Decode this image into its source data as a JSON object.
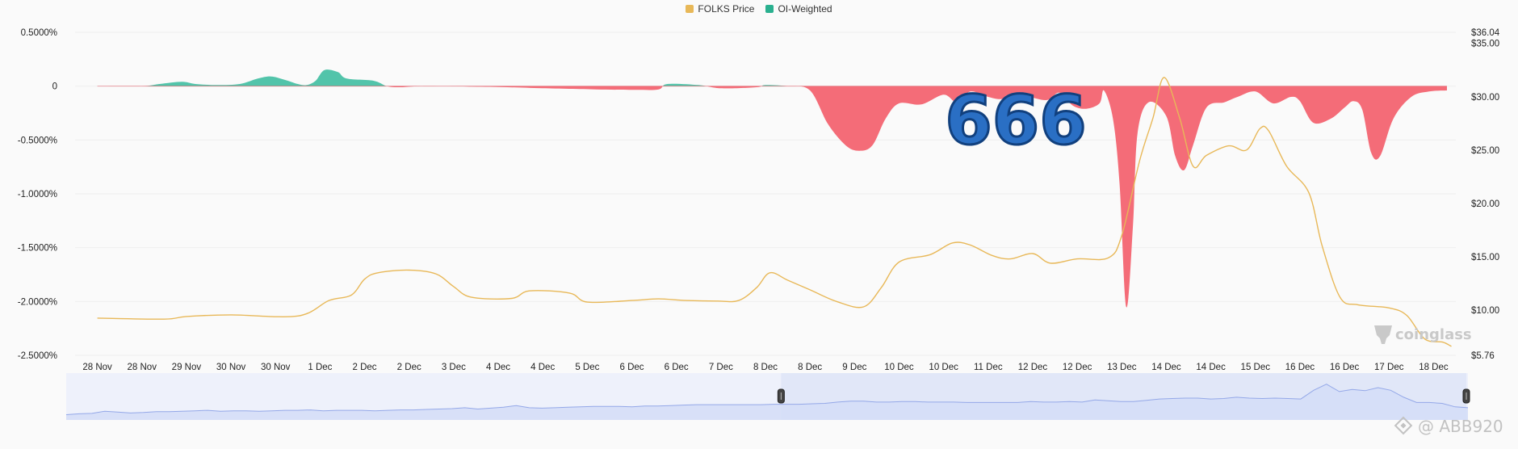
{
  "legend": {
    "price_label": "FOLKS Price",
    "oi_label": "OI-Weighted"
  },
  "colors": {
    "price": "#e8b858",
    "positive": "#52c4aa",
    "negative": "#f46c78",
    "navigator_fill": "#d5def7",
    "navigator_line": "#94a8e8",
    "grid": "#efefef"
  },
  "overlay": {
    "text": "666"
  },
  "watermark": {
    "brand": "coinglass",
    "credit": "@ ABB920"
  },
  "chart_data": {
    "type": "area",
    "x_labels": [
      "28 Nov",
      "28 Nov",
      "29 Nov",
      "30 Nov",
      "30 Nov",
      "1 Dec",
      "2 Dec",
      "2 Dec",
      "3 Dec",
      "4 Dec",
      "4 Dec",
      "5 Dec",
      "6 Dec",
      "6 Dec",
      "7 Dec",
      "8 Dec",
      "8 Dec",
      "9 Dec",
      "10 Dec",
      "10 Dec",
      "11 Dec",
      "12 Dec",
      "12 Dec",
      "13 Dec",
      "14 Dec",
      "14 Dec",
      "15 Dec",
      "16 Dec",
      "16 Dec",
      "17 Dec",
      "18 Dec"
    ],
    "y_left": {
      "ticks": [
        "0.5000%",
        "0",
        "-0.5000%",
        "-1.0000%",
        "-1.5000%",
        "-2.0000%",
        "-2.5000%"
      ],
      "range": [
        -2.5,
        0.5
      ]
    },
    "y_right": {
      "ticks": [
        "$36.04",
        "$35.00",
        "$30.00",
        "$25.00",
        "$20.00",
        "$15.00",
        "$10.00",
        "$5.76"
      ],
      "range": [
        5.76,
        36.04
      ]
    },
    "series": [
      {
        "name": "OI-Weighted",
        "unit": "%",
        "points": [
          [
            0,
            0
          ],
          [
            1,
            0
          ],
          [
            1.4,
            0.02
          ],
          [
            1.9,
            0.04
          ],
          [
            2.2,
            0.02
          ],
          [
            2.7,
            0.01
          ],
          [
            3.2,
            0.02
          ],
          [
            3.6,
            0.07
          ],
          [
            3.9,
            0.09
          ],
          [
            4.2,
            0.06
          ],
          [
            4.5,
            0.02
          ],
          [
            4.7,
            0.01
          ],
          [
            4.9,
            0.05
          ],
          [
            5.1,
            0.15
          ],
          [
            5.4,
            0.13
          ],
          [
            5.6,
            0.07
          ],
          [
            6.2,
            0.05
          ],
          [
            6.5,
            0
          ],
          [
            6.8,
            -0.01
          ],
          [
            7.3,
            0
          ],
          [
            8.4,
            -0.005
          ],
          [
            9.2,
            -0.01
          ],
          [
            10,
            -0.02
          ],
          [
            11.2,
            -0.03
          ],
          [
            12.1,
            -0.035
          ],
          [
            12.6,
            -0.03
          ],
          [
            12.8,
            0.02
          ],
          [
            13.5,
            0.01
          ],
          [
            14,
            -0.02
          ],
          [
            14.8,
            -0.01
          ],
          [
            15,
            0.01
          ],
          [
            15.5,
            0
          ],
          [
            16,
            -0.04
          ],
          [
            16.4,
            -0.35
          ],
          [
            16.8,
            -0.55
          ],
          [
            17.1,
            -0.6
          ],
          [
            17.4,
            -0.55
          ],
          [
            17.7,
            -0.3
          ],
          [
            18,
            -0.16
          ],
          [
            18.5,
            -0.17
          ],
          [
            19,
            -0.08
          ],
          [
            19.3,
            -0.15
          ],
          [
            19.6,
            -0.05
          ],
          [
            20,
            -0.1
          ],
          [
            20.3,
            -0.12
          ],
          [
            20.7,
            -0.08
          ],
          [
            21.3,
            -0.13
          ],
          [
            21.6,
            -0.06
          ],
          [
            21.9,
            -0.18
          ],
          [
            22.2,
            -0.21
          ],
          [
            22.5,
            -0.16
          ],
          [
            22.6,
            -0.04
          ],
          [
            22.8,
            -0.3
          ],
          [
            22.95,
            -0.9
          ],
          [
            23.1,
            -2.05
          ],
          [
            23.25,
            -1.3
          ],
          [
            23.35,
            -0.45
          ],
          [
            23.6,
            -0.15
          ],
          [
            24,
            -0.28
          ],
          [
            24.2,
            -0.65
          ],
          [
            24.4,
            -0.78
          ],
          [
            24.6,
            -0.55
          ],
          [
            24.9,
            -0.2
          ],
          [
            25.3,
            -0.15
          ],
          [
            25.6,
            -0.1
          ],
          [
            26,
            -0.05
          ],
          [
            26.4,
            -0.16
          ],
          [
            26.8,
            -0.1
          ],
          [
            27,
            -0.14
          ],
          [
            27.3,
            -0.34
          ],
          [
            27.7,
            -0.3
          ],
          [
            28,
            -0.2
          ],
          [
            28.2,
            -0.14
          ],
          [
            28.4,
            -0.22
          ],
          [
            28.6,
            -0.62
          ],
          [
            28.8,
            -0.65
          ],
          [
            29.1,
            -0.3
          ],
          [
            29.5,
            -0.1
          ],
          [
            29.9,
            -0.05
          ],
          [
            30.3,
            -0.04
          ]
        ]
      },
      {
        "name": "FOLKS Price",
        "unit": "$",
        "points": [
          [
            0,
            9.25
          ],
          [
            1.5,
            9.15
          ],
          [
            2,
            9.4
          ],
          [
            3,
            9.55
          ],
          [
            4.5,
            9.45
          ],
          [
            5.2,
            10.9
          ],
          [
            5.7,
            11.4
          ],
          [
            6,
            12.9
          ],
          [
            6.3,
            13.5
          ],
          [
            7,
            13.75
          ],
          [
            7.6,
            13.4
          ],
          [
            8,
            12.2
          ],
          [
            8.4,
            11.2
          ],
          [
            9.3,
            11.1
          ],
          [
            9.7,
            11.8
          ],
          [
            10.6,
            11.6
          ],
          [
            11,
            10.75
          ],
          [
            12,
            10.9
          ],
          [
            12.6,
            11.05
          ],
          [
            13.2,
            10.9
          ],
          [
            13.9,
            10.85
          ],
          [
            14.4,
            10.9
          ],
          [
            14.8,
            12.1
          ],
          [
            15.1,
            13.5
          ],
          [
            15.5,
            12.8
          ],
          [
            16,
            11.9
          ],
          [
            16.6,
            10.8
          ],
          [
            17.2,
            10.3
          ],
          [
            17.6,
            12.1
          ],
          [
            18,
            14.5
          ],
          [
            18.7,
            15.2
          ],
          [
            19.2,
            16.3
          ],
          [
            19.6,
            16.1
          ],
          [
            20.1,
            15.1
          ],
          [
            20.5,
            14.8
          ],
          [
            21,
            15.3
          ],
          [
            21.4,
            14.4
          ],
          [
            22,
            14.8
          ],
          [
            22.7,
            14.9
          ],
          [
            23,
            17
          ],
          [
            23.4,
            24
          ],
          [
            23.7,
            28
          ],
          [
            23.95,
            31.8
          ],
          [
            24.3,
            28
          ],
          [
            24.6,
            23.5
          ],
          [
            24.9,
            24.5
          ],
          [
            25.4,
            25.4
          ],
          [
            25.8,
            25
          ],
          [
            26.1,
            27
          ],
          [
            26.3,
            26.8
          ],
          [
            26.7,
            23.5
          ],
          [
            27.2,
            21
          ],
          [
            27.5,
            16
          ],
          [
            27.9,
            11.2
          ],
          [
            28.3,
            10.5
          ],
          [
            29,
            10.2
          ],
          [
            29.4,
            9.5
          ],
          [
            29.8,
            7.3
          ],
          [
            30.2,
            7
          ],
          [
            30.4,
            6.6
          ]
        ]
      }
    ],
    "navigator": {
      "selection_start": 0.51,
      "points": [
        0.12,
        0.14,
        0.15,
        0.2,
        0.18,
        0.16,
        0.17,
        0.19,
        0.19,
        0.2,
        0.21,
        0.22,
        0.2,
        0.21,
        0.21,
        0.2,
        0.21,
        0.22,
        0.22,
        0.23,
        0.21,
        0.22,
        0.22,
        0.22,
        0.21,
        0.22,
        0.23,
        0.23,
        0.24,
        0.25,
        0.26,
        0.28,
        0.25,
        0.27,
        0.29,
        0.33,
        0.28,
        0.27,
        0.28,
        0.29,
        0.3,
        0.31,
        0.31,
        0.31,
        0.3,
        0.32,
        0.32,
        0.33,
        0.34,
        0.35,
        0.35,
        0.35,
        0.35,
        0.35,
        0.35,
        0.36,
        0.36,
        0.36,
        0.37,
        0.38,
        0.41,
        0.43,
        0.43,
        0.41,
        0.41,
        0.42,
        0.42,
        0.41,
        0.41,
        0.41,
        0.4,
        0.4,
        0.4,
        0.4,
        0.4,
        0.42,
        0.41,
        0.41,
        0.42,
        0.41,
        0.46,
        0.44,
        0.42,
        0.42,
        0.45,
        0.48,
        0.49,
        0.5,
        0.5,
        0.48,
        0.49,
        0.52,
        0.5,
        0.49,
        0.5,
        0.49,
        0.48,
        0.68,
        0.82,
        0.65,
        0.7,
        0.67,
        0.74,
        0.68,
        0.52,
        0.4,
        0.4,
        0.38,
        0.3,
        0.28
      ]
    }
  }
}
